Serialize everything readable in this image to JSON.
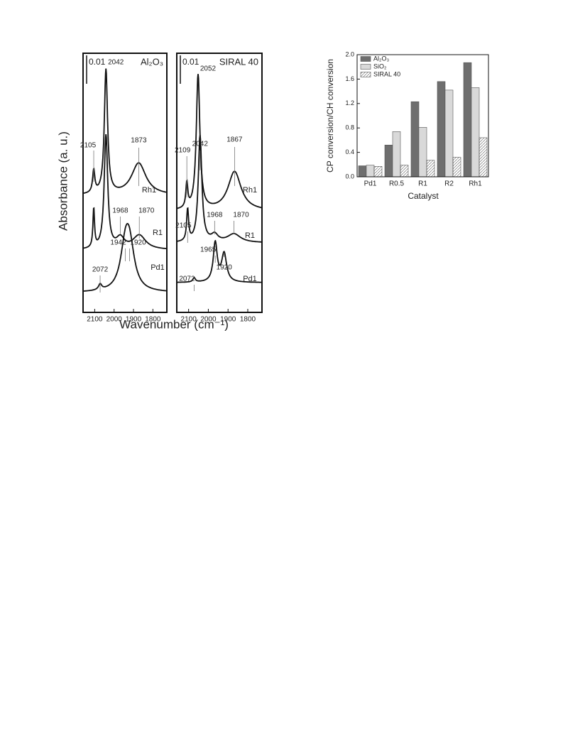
{
  "spectra": {
    "y_label": "Absorbance (a. u.)",
    "x_label": "Wavenumber (cm⁻¹)",
    "xlim": [
      2160,
      1728
    ],
    "xticks": [
      2100,
      2000,
      1900,
      1800
    ],
    "panels": [
      {
        "title": "Al₂O₃",
        "scale": "0.01",
        "curves": [
          "Rh1",
          "R1",
          "Pd1"
        ],
        "peaks": [
          2042,
          2105,
          1873,
          1968,
          1870,
          1942,
          1920,
          2072
        ]
      },
      {
        "title": "SIRAL 40",
        "scale": "0.01",
        "curves": [
          "Rh1",
          "R1",
          "Pd1"
        ],
        "peaks": [
          2052,
          2109,
          2042,
          1867,
          1968,
          1870,
          2105,
          1965,
          1920,
          2072
        ]
      }
    ]
  },
  "chart_data": {
    "type": "bar",
    "y_label": "CP conversion/CH conversion",
    "x_label": "Catalyst",
    "categories": [
      "Pd1",
      "R0.5",
      "R1",
      "R2",
      "Rh1"
    ],
    "series": [
      {
        "name": "Al₂O₃",
        "color": "#6e6e6e",
        "values": [
          0.18,
          0.52,
          1.23,
          1.56,
          1.87
        ]
      },
      {
        "name": "SiO₂",
        "color": "#d9d9d9",
        "values": [
          0.19,
          0.74,
          0.81,
          1.42,
          1.46
        ]
      },
      {
        "name": "SIRAL 40",
        "color": "#ffffff",
        "hatch": true,
        "values": [
          0.17,
          0.19,
          0.27,
          0.32,
          0.64
        ]
      }
    ],
    "ylim": [
      0,
      2
    ],
    "yticks": [
      {
        "value": 0,
        "label": "0.0"
      },
      0.4,
      0.8,
      1.2,
      1.6,
      {
        "value": 2,
        "label": "2.0"
      }
    ],
    "legend": "upper-left"
  }
}
